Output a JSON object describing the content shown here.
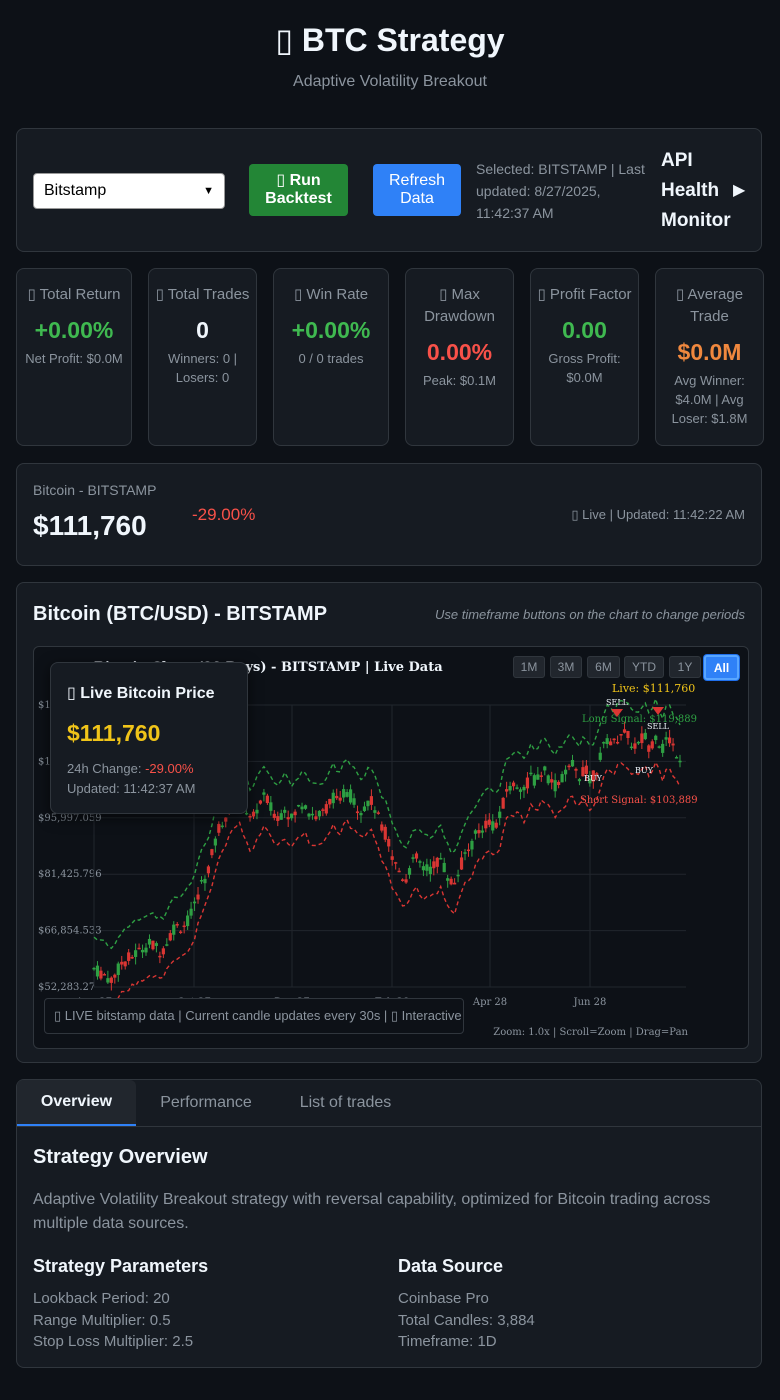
{
  "header": {
    "title": "▯ BTC Strategy",
    "subtitle": "Adaptive Volatility Breakout"
  },
  "controls": {
    "exchange_selected": "Bitstamp",
    "run_label": "▯ Run Backtest",
    "refresh_label": "Refresh Data",
    "selected_info": "Selected: BITSTAMP | Last updated: 8/27/2025, 11:42:37 AM",
    "api_monitor_label": "API Health Monitor",
    "api_monitor_arrow": "▶"
  },
  "stats": [
    {
      "label": "▯ Total Return",
      "value": "+0.00%",
      "sub": "Net Profit: $0.0M",
      "color": "#3fb950"
    },
    {
      "label": "▯ Total Trades",
      "value": "0",
      "sub": "Winners: 0 | Losers: 0",
      "color": "#f0f6fc"
    },
    {
      "label": "▯ Win Rate",
      "value": "+0.00%",
      "sub": "0 / 0 trades",
      "color": "#3fb950"
    },
    {
      "label": "▯ Max Drawdown",
      "value": "0.00%",
      "sub": "Peak: $0.1M",
      "color": "#f85149"
    },
    {
      "label": "▯ Profit Factor",
      "value": "0.00",
      "sub": "Gross Profit: $0.0M",
      "color": "#3fb950"
    },
    {
      "label": "▯ Average Trade",
      "value": "$0.0M",
      "sub": "Avg Winner: $4.0M | Avg Loser: $1.8M",
      "color": "#f0883e"
    }
  ],
  "price_panel": {
    "name": "Bitcoin - BITSTAMP",
    "price": "$111,760",
    "change": "-29.00%",
    "live_status": "▯ Live | Updated: 11:42:22 AM"
  },
  "chart_panel": {
    "title": "Bitcoin (BTC/USD) - BITSTAMP",
    "hint": "Use timeframe buttons on the chart to change periods",
    "chart_title": "Bitcoin Chart (90 Days) - BITSTAMP | Live Data",
    "timeframes": [
      "1M",
      "3M",
      "6M",
      "YTD",
      "1Y",
      "All"
    ],
    "active_timeframe": "All",
    "live_card": {
      "title": "▯ Live Bitcoin Price",
      "price": "$111,760",
      "change_label": "24h Change: ",
      "change_value": "-29.00%",
      "updated": "Updated: 11:42:37 AM"
    },
    "footer": "▯ LIVE bitstamp data | Current candle updates every 30s | ▯ Interactive",
    "zoom_info": "Zoom: 1.0x | Scroll=Zoom | Drag=Pan"
  },
  "chart_data": {
    "type": "candlestick",
    "title": "Bitcoin Chart (90 Days) - BITSTAMP | Live Data",
    "y_ticks": [
      "$52,283.27",
      "$66,854.533",
      "$81,425.796",
      "$95,997.059",
      "$110,568.322",
      "$125,139.585"
    ],
    "x_ticks": [
      "Aug 27",
      "Oct 27",
      "Dec 27",
      "Feb 28",
      "Apr 28",
      "Jun 28"
    ],
    "ylim": [
      52283.27,
      125139.585
    ],
    "annotations": {
      "live": "Live: $111,760",
      "long_signal": "Long Signal: $119,889",
      "short_signal": "Short Signal: $103,889",
      "sell": "SELL",
      "buy": "BUY"
    },
    "price_path": [
      [
        0,
        57000
      ],
      [
        10,
        55500
      ],
      [
        18,
        54000
      ],
      [
        28,
        58500
      ],
      [
        40,
        60500
      ],
      [
        55,
        63500
      ],
      [
        68,
        61500
      ],
      [
        80,
        67500
      ],
      [
        92,
        68500
      ],
      [
        100,
        72000
      ],
      [
        106,
        78000
      ],
      [
        114,
        82000
      ],
      [
        120,
        88000
      ],
      [
        126,
        94000
      ],
      [
        133,
        97000
      ],
      [
        140,
        101000
      ],
      [
        146,
        102500
      ],
      [
        152,
        98500
      ],
      [
        158,
        94500
      ],
      [
        165,
        99500
      ],
      [
        172,
        101500
      ],
      [
        178,
        98000
      ],
      [
        185,
        96000
      ],
      [
        192,
        99000
      ],
      [
        198,
        95500
      ],
      [
        205,
        98500
      ],
      [
        211,
        100500
      ],
      [
        216,
        97500
      ],
      [
        222,
        96500
      ],
      [
        228,
        96500
      ],
      [
        234,
        99000
      ],
      [
        240,
        101500
      ],
      [
        246,
        99000
      ],
      [
        252,
        103500
      ],
      [
        258,
        101500
      ],
      [
        264,
        99000
      ],
      [
        270,
        98000
      ],
      [
        276,
        101000
      ],
      [
        282,
        98500
      ],
      [
        288,
        93500
      ],
      [
        294,
        91500
      ],
      [
        300,
        85000
      ],
      [
        306,
        82500
      ],
      [
        312,
        80000
      ],
      [
        318,
        83500
      ],
      [
        324,
        85500
      ],
      [
        330,
        83000
      ],
      [
        336,
        82500
      ],
      [
        342,
        84000
      ],
      [
        348,
        85500
      ],
      [
        354,
        81500
      ],
      [
        360,
        78500
      ],
      [
        366,
        82000
      ],
      [
        372,
        86500
      ],
      [
        378,
        88500
      ],
      [
        384,
        92000
      ],
      [
        390,
        93500
      ],
      [
        396,
        95500
      ],
      [
        402,
        93500
      ],
      [
        408,
        96500
      ],
      [
        414,
        103500
      ],
      [
        420,
        104000
      ],
      [
        426,
        105000
      ],
      [
        432,
        103000
      ],
      [
        438,
        107000
      ],
      [
        444,
        105000
      ],
      [
        450,
        108500
      ],
      [
        456,
        106500
      ],
      [
        462,
        104000
      ],
      [
        468,
        106000
      ],
      [
        474,
        107500
      ],
      [
        480,
        109500
      ],
      [
        486,
        106500
      ],
      [
        492,
        109000
      ],
      [
        498,
        105500
      ],
      [
        504,
        108500
      ],
      [
        510,
        113000
      ],
      [
        516,
        117000
      ],
      [
        522,
        115000
      ],
      [
        528,
        118500
      ],
      [
        534,
        117500
      ],
      [
        540,
        115000
      ],
      [
        546,
        114500
      ],
      [
        552,
        117500
      ],
      [
        558,
        114000
      ],
      [
        564,
        118000
      ],
      [
        570,
        113500
      ],
      [
        576,
        117000
      ],
      [
        582,
        114000
      ],
      [
        588,
        111760
      ]
    ]
  }
}
